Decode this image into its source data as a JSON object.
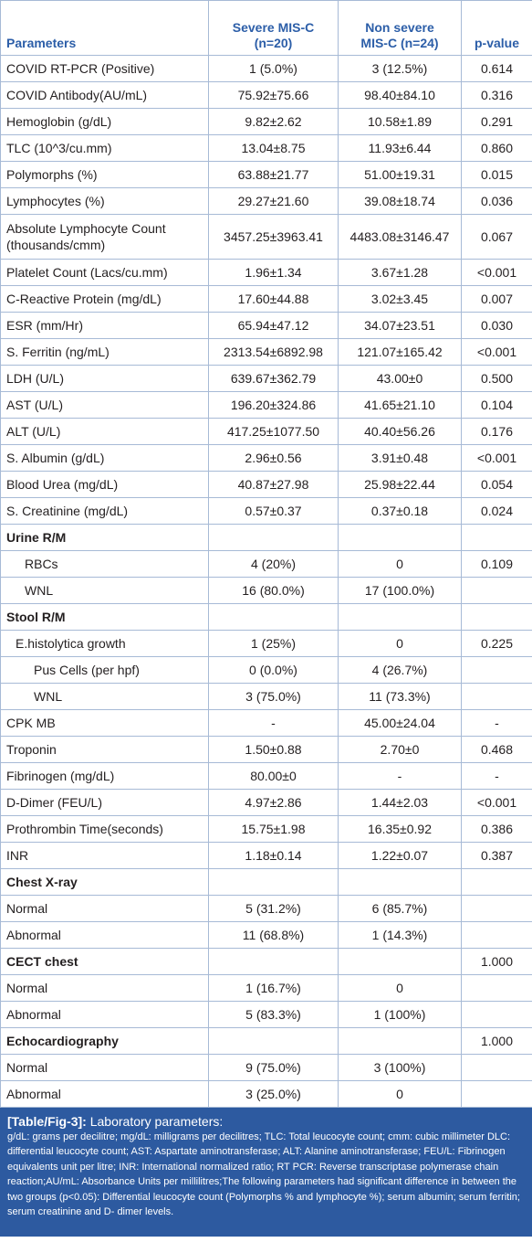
{
  "table": {
    "headers": [
      [
        "Parameters"
      ],
      [
        "Severe MIS-C",
        "(n=20)"
      ],
      [
        "Non severe",
        "MIS-C (n=24)"
      ],
      [
        "p-value"
      ]
    ],
    "rows": [
      {
        "label": "COVID RT-PCR (Positive)",
        "severe": "1 (5.0%)",
        "non_severe": "3 (12.5%)",
        "p": "0.614"
      },
      {
        "label": "COVID Antibody(AU/mL)",
        "severe": "75.92±75.66",
        "non_severe": "98.40±84.10",
        "p": "0.316"
      },
      {
        "label": "Hemoglobin (g/dL)",
        "severe": "9.82±2.62",
        "non_severe": "10.58±1.89",
        "p": "0.291"
      },
      {
        "label": "TLC (10^3/cu.mm)",
        "severe": "13.04±8.75",
        "non_severe": "11.93±6.44",
        "p": "0.860"
      },
      {
        "label": "Polymorphs (%)",
        "severe": "63.88±21.77",
        "non_severe": "51.00±19.31",
        "p": "0.015"
      },
      {
        "label": "Lymphocytes (%)",
        "severe": "29.27±21.60",
        "non_severe": "39.08±18.74",
        "p": "0.036"
      },
      {
        "label": [
          "Absolute Lymphocyte Count",
          "(thousands/cmm)"
        ],
        "severe": "3457.25±3963.41",
        "non_severe": "4483.08±3146.47",
        "p": "0.067"
      },
      {
        "label": "Platelet Count (Lacs/cu.mm)",
        "severe": "1.96±1.34",
        "non_severe": "3.67±1.28",
        "p": "<0.001"
      },
      {
        "label": "C-Reactive Protein (mg/dL)",
        "severe": "17.60±44.88",
        "non_severe": "3.02±3.45",
        "p": "0.007"
      },
      {
        "label": "ESR (mm/Hr)",
        "severe": "65.94±47.12",
        "non_severe": "34.07±23.51",
        "p": "0.030"
      },
      {
        "label": "S. Ferritin (ng/mL)",
        "severe": "2313.54±6892.98",
        "non_severe": "121.07±165.42",
        "p": "<0.001"
      },
      {
        "label": "LDH (U/L)",
        "severe": "639.67±362.79",
        "non_severe": "43.00±0",
        "p": "0.500"
      },
      {
        "label": "AST (U/L)",
        "severe": "196.20±324.86",
        "non_severe": "41.65±21.10",
        "p": "0.104"
      },
      {
        "label": "ALT (U/L)",
        "severe": "417.25±1077.50",
        "non_severe": "40.40±56.26",
        "p": "0.176"
      },
      {
        "label": "S. Albumin (g/dL)",
        "severe": "2.96±0.56",
        "non_severe": "3.91±0.48",
        "p": "<0.001"
      },
      {
        "label": "Blood Urea (mg/dL)",
        "severe": "40.87±27.98",
        "non_severe": "25.98±22.44",
        "p": "0.054"
      },
      {
        "label": "S. Creatinine (mg/dL)",
        "severe": "0.57±0.37",
        "non_severe": "0.37±0.18",
        "p": "0.024"
      },
      {
        "label": "Urine R/M",
        "section": true
      },
      {
        "label": "RBCs",
        "indent": 2,
        "severe": "4 (20%)",
        "non_severe": "0",
        "p": "0.109"
      },
      {
        "label": "WNL",
        "indent": 2,
        "severe": "16 (80.0%)",
        "non_severe": "17 (100.0%)"
      },
      {
        "label": "Stool R/M",
        "section": true
      },
      {
        "label": "E.histolytica growth",
        "indent": 1,
        "severe": "1 (25%)",
        "non_severe": "0",
        "p": "0.225"
      },
      {
        "label": "Pus Cells (per hpf)",
        "indent": 3,
        "severe": "0 (0.0%)",
        "non_severe": "4 (26.7%)"
      },
      {
        "label": "WNL",
        "indent": 3,
        "severe": "3 (75.0%)",
        "non_severe": "11 (73.3%)"
      },
      {
        "label": "CPK MB",
        "severe": "-",
        "non_severe": "45.00±24.04",
        "p": "-"
      },
      {
        "label": "Troponin",
        "severe": "1.50±0.88",
        "non_severe": "2.70±0",
        "p": "0.468"
      },
      {
        "label": "Fibrinogen (mg/dL)",
        "severe": "80.00±0",
        "non_severe": "-",
        "p": "-"
      },
      {
        "label": "D-Dimer (FEU/L)",
        "severe": "4.97±2.86",
        "non_severe": "1.44±2.03",
        "p": "<0.001"
      },
      {
        "label": "Prothrombin Time(seconds)",
        "severe": "15.75±1.98",
        "non_severe": "16.35±0.92",
        "p": "0.386"
      },
      {
        "label": "INR",
        "severe": "1.18±0.14",
        "non_severe": "1.22±0.07",
        "p": "0.387"
      },
      {
        "label": "Chest X-ray",
        "section": true
      },
      {
        "label": "Normal",
        "severe": "5 (31.2%)",
        "non_severe": "6 (85.7%)"
      },
      {
        "label": "Abnormal",
        "severe": "11 (68.8%)",
        "non_severe": "1 (14.3%)"
      },
      {
        "label": "CECT chest",
        "section": true,
        "p": "1.000"
      },
      {
        "label": "Normal",
        "severe": "1 (16.7%)",
        "non_severe": "0"
      },
      {
        "label": "Abnormal",
        "severe": "5 (83.3%)",
        "non_severe": "1 (100%)"
      },
      {
        "label": "Echocardiography",
        "section": true,
        "p": "1.000"
      },
      {
        "label": "Normal",
        "severe": "9 (75.0%)",
        "non_severe": "3 (100%)"
      },
      {
        "label": "Abnormal",
        "severe": "3 (25.0%)",
        "non_severe": "0"
      }
    ]
  },
  "caption": {
    "label": "[Table/Fig-3]:",
    "title": "Laboratory parameters:",
    "text": "g/dL: grams per decilitre; mg/dL: milligrams per decilitres; TLC: Total leucocyte count; cmm: cubic millimeter DLC: differential leucocyte count; AST: Aspartate aminotransferase; ALT: Alanine aminotransferase; FEU/L: Fibrinogen equivalents unit per litre; INR: International normalized ratio; RT PCR: Reverse transcriptase polymerase chain reaction;AU/mL: Absorbance Units per millilitres;The following parameters had significant difference in between the two groups (p<0.05): Differential leucocyte count (Polymorphs % and lymphocyte %); serum albumin; serum ferritin; serum creatinine and D- dimer levels."
  }
}
